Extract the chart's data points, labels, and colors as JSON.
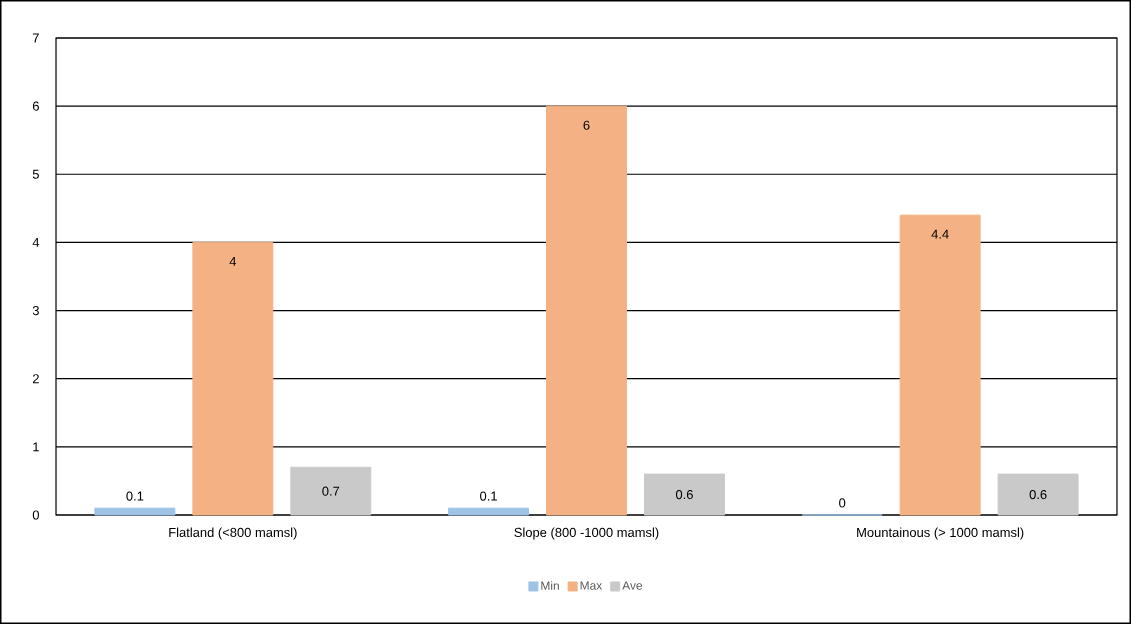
{
  "chart_data": {
    "type": "bar",
    "categories": [
      "Flatland (<800 mamsl)",
      "Slope (800 -1000 mamsl)",
      "Mountainous (> 1000 mamsl)"
    ],
    "series": [
      {
        "name": "Min",
        "color": "#9dc3e6",
        "values": [
          0.1,
          0.1,
          0
        ]
      },
      {
        "name": "Max",
        "color": "#f4b183",
        "values": [
          4,
          6,
          4.4
        ]
      },
      {
        "name": "Ave",
        "color": "#c9c9c9",
        "values": [
          0.7,
          0.6,
          0.6
        ]
      }
    ],
    "ylim": [
      0,
      7
    ],
    "yticks": [
      0,
      1,
      2,
      3,
      4,
      5,
      6,
      7
    ],
    "grid": "y",
    "legend": "bottom",
    "data_labels": true
  }
}
